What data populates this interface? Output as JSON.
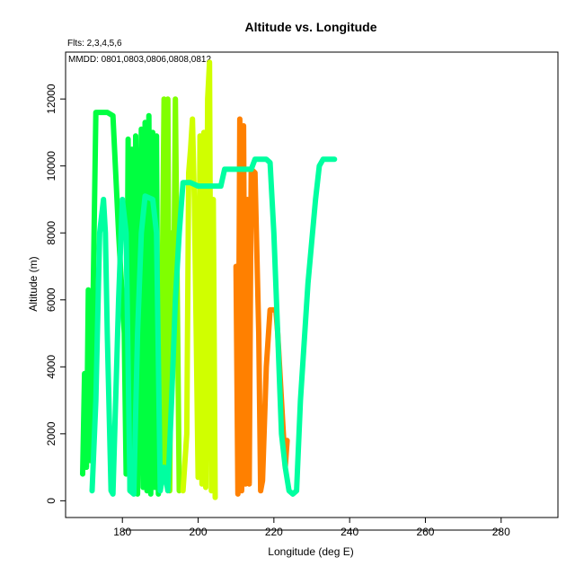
{
  "chart_data": {
    "type": "line",
    "title": "Altitude vs. Longitude",
    "annotations": [
      "Flts: 2,3,4,5,6",
      "MMDD: 0801,0803,0806,0808,0812"
    ],
    "xlabel": "Longitude (deg E)",
    "ylabel": "Altitude (m)",
    "xlim": [
      165,
      295
    ],
    "ylim": [
      -500,
      13400
    ],
    "xticks": [
      180,
      200,
      220,
      240,
      260,
      280
    ],
    "yticks": [
      0,
      2000,
      4000,
      6000,
      8000,
      10000,
      12000
    ],
    "grid": false,
    "series": [
      {
        "color": "#00ff40",
        "points": [
          [
            169.5,
            800
          ],
          [
            170,
            3800
          ],
          [
            170.5,
            1000
          ],
          [
            171,
            6300
          ],
          [
            171.5,
            1200
          ],
          [
            172,
            4000
          ],
          [
            173,
            11600
          ],
          [
            176,
            11600
          ],
          [
            177.5,
            11500
          ],
          [
            179,
            8000
          ],
          [
            180.5,
            5000
          ],
          [
            181,
            800
          ],
          [
            181.5,
            10800
          ],
          [
            182,
            300
          ],
          [
            182.5,
            10500
          ],
          [
            183,
            800
          ],
          [
            183.5,
            10900
          ],
          [
            184,
            200
          ],
          [
            185,
            11100
          ],
          [
            185.5,
            400
          ],
          [
            186,
            11300
          ],
          [
            186.5,
            300
          ],
          [
            187,
            11500
          ],
          [
            187.5,
            200
          ],
          [
            188,
            11000
          ],
          [
            188.5,
            400
          ],
          [
            189,
            10900
          ],
          [
            189.5,
            200
          ]
        ]
      },
      {
        "color": "#80ff00",
        "points": [
          [
            190,
            500
          ],
          [
            191,
            12000
          ],
          [
            191.5,
            600
          ],
          [
            192,
            12000
          ],
          [
            192.5,
            300
          ],
          [
            193,
            8000
          ],
          [
            193.5,
            5000
          ],
          [
            194,
            12000
          ],
          [
            195,
            300
          ]
        ]
      },
      {
        "color": "#d0ff00",
        "points": [
          [
            196,
            300
          ],
          [
            197,
            2000
          ],
          [
            197.5,
            9800
          ],
          [
            198,
            10500
          ],
          [
            198.5,
            11400
          ],
          [
            199,
            9000
          ],
          [
            199.5,
            5000
          ],
          [
            200,
            700
          ],
          [
            200.5,
            10900
          ],
          [
            201,
            500
          ],
          [
            201.5,
            11000
          ],
          [
            202,
            400
          ],
          [
            202.5,
            12000
          ],
          [
            203,
            13100
          ],
          [
            203.5,
            300
          ],
          [
            204,
            9000
          ],
          [
            204.5,
            100
          ]
        ]
      },
      {
        "color": "#ff8000",
        "points": [
          [
            210,
            7000
          ],
          [
            210.5,
            200
          ],
          [
            211,
            11400
          ],
          [
            211.5,
            300
          ],
          [
            212,
            11200
          ],
          [
            212.5,
            500
          ],
          [
            213,
            9000
          ],
          [
            213.5,
            500
          ],
          [
            214,
            9900
          ],
          [
            215,
            9800
          ],
          [
            216,
            5000
          ],
          [
            216.5,
            300
          ],
          [
            217,
            600
          ],
          [
            218,
            4000
          ],
          [
            219,
            5700
          ],
          [
            220.5,
            5700
          ],
          [
            221,
            5000
          ],
          [
            222,
            3000
          ],
          [
            223,
            1000
          ],
          [
            223.5,
            1800
          ]
        ]
      },
      {
        "color": "#00ffa0",
        "points": [
          [
            172,
            300
          ],
          [
            173,
            3000
          ],
          [
            174,
            8000
          ],
          [
            175,
            9000
          ],
          [
            175.5,
            8000
          ],
          [
            176,
            5000
          ],
          [
            177,
            300
          ],
          [
            177.5,
            200
          ],
          [
            179,
            6000
          ],
          [
            180,
            9000
          ],
          [
            181,
            8000
          ],
          [
            182,
            300
          ],
          [
            183,
            200
          ],
          [
            184,
            5000
          ],
          [
            185,
            8000
          ],
          [
            186,
            9100
          ],
          [
            188,
            9000
          ],
          [
            189,
            8000
          ],
          [
            190,
            300
          ],
          [
            191,
            1000
          ],
          [
            192,
            300
          ],
          [
            193,
            3000
          ],
          [
            194,
            6000
          ],
          [
            195,
            8000
          ],
          [
            196,
            9500
          ],
          [
            198,
            9500
          ],
          [
            200,
            9400
          ],
          [
            202,
            9400
          ],
          [
            204,
            9400
          ],
          [
            205,
            9400
          ],
          [
            206,
            9400
          ],
          [
            207,
            9900
          ],
          [
            209,
            9900
          ],
          [
            212,
            9900
          ],
          [
            213,
            9900
          ],
          [
            214,
            9900
          ],
          [
            215,
            10200
          ],
          [
            218,
            10200
          ],
          [
            219,
            10100
          ],
          [
            220,
            8000
          ],
          [
            221,
            5000
          ],
          [
            222,
            2000
          ],
          [
            223,
            1000
          ],
          [
            224,
            300
          ],
          [
            225,
            200
          ],
          [
            226,
            300
          ],
          [
            227,
            3000
          ],
          [
            229,
            6500
          ],
          [
            231,
            9000
          ],
          [
            232,
            10000
          ],
          [
            233,
            10200
          ],
          [
            236,
            10200
          ]
        ]
      }
    ]
  }
}
